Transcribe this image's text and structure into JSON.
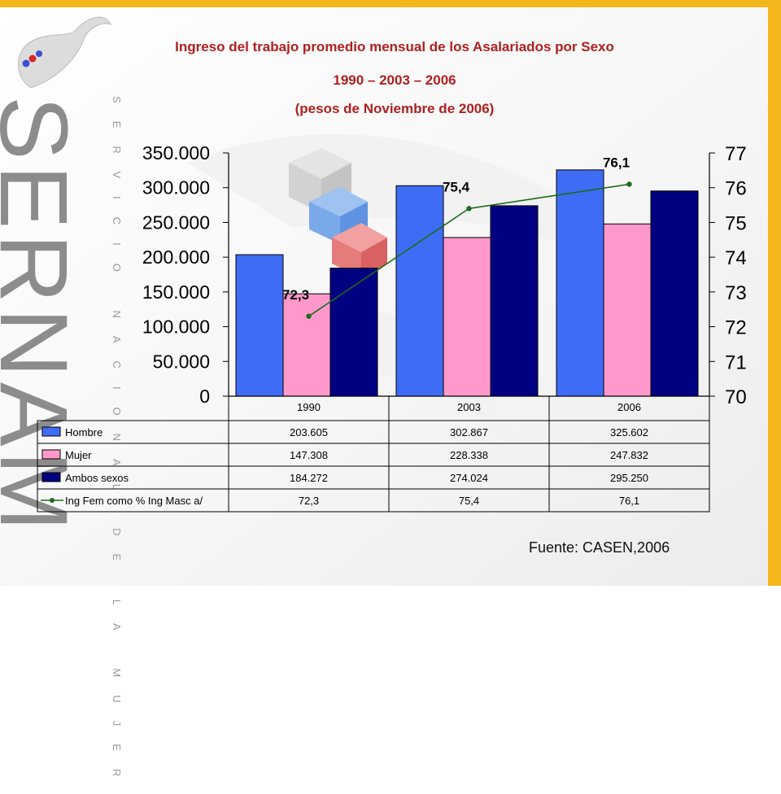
{
  "brand": {
    "name": "SERNAM",
    "tagline": "SERVICIO NACIONAL DE LA MUJER"
  },
  "colors": {
    "title": "#b01f1f",
    "hombre": "#3f6cf4",
    "mujer": "#ff99cc",
    "ambos": "#000080",
    "line": "#1c6b1c",
    "right_border": "#f3b71c"
  },
  "source": "Fuente: CASEN,2006",
  "chart_data": {
    "type": "bar",
    "title_lines": [
      "Ingreso del trabajo promedio mensual de los Asalariados por Sexo",
      "1990 – 2003 – 2006",
      "(pesos de Noviembre de 2006)"
    ],
    "categories": [
      "1990",
      "2003",
      "2006"
    ],
    "series": [
      {
        "name": "Hombre",
        "type": "bar",
        "axis": "left",
        "values": [
          203605,
          302867,
          325602
        ],
        "labels": [
          "203.605",
          "302.867",
          "325.602"
        ]
      },
      {
        "name": "Mujer",
        "type": "bar",
        "axis": "left",
        "values": [
          147308,
          228338,
          247832
        ],
        "labels": [
          "147.308",
          "228.338",
          "247.832"
        ]
      },
      {
        "name": "Ambos sexos",
        "type": "bar",
        "axis": "left",
        "values": [
          184272,
          274024,
          295250
        ],
        "labels": [
          "184.272",
          "274.024",
          "295.250"
        ]
      },
      {
        "name": "Ing Fem como % Ing Masc a/",
        "type": "line",
        "axis": "right",
        "values": [
          72.3,
          75.4,
          76.1
        ],
        "labels": [
          "72,3",
          "75,4",
          "76,1"
        ]
      }
    ],
    "left_axis": {
      "range": [
        0,
        350000
      ],
      "ticks": [
        0,
        50000,
        100000,
        150000,
        200000,
        250000,
        300000,
        350000
      ],
      "tick_labels": [
        "0",
        "50.000",
        "100.000",
        "150.000",
        "200.000",
        "250.000",
        "300.000",
        "350.000"
      ]
    },
    "right_axis": {
      "range": [
        70,
        77
      ],
      "ticks": [
        70,
        71,
        72,
        73,
        74,
        75,
        76,
        77
      ],
      "tick_labels": [
        "70",
        "71",
        "72",
        "73",
        "74",
        "75",
        "76",
        "77"
      ]
    },
    "legend": "data-table-below",
    "grid": false
  }
}
